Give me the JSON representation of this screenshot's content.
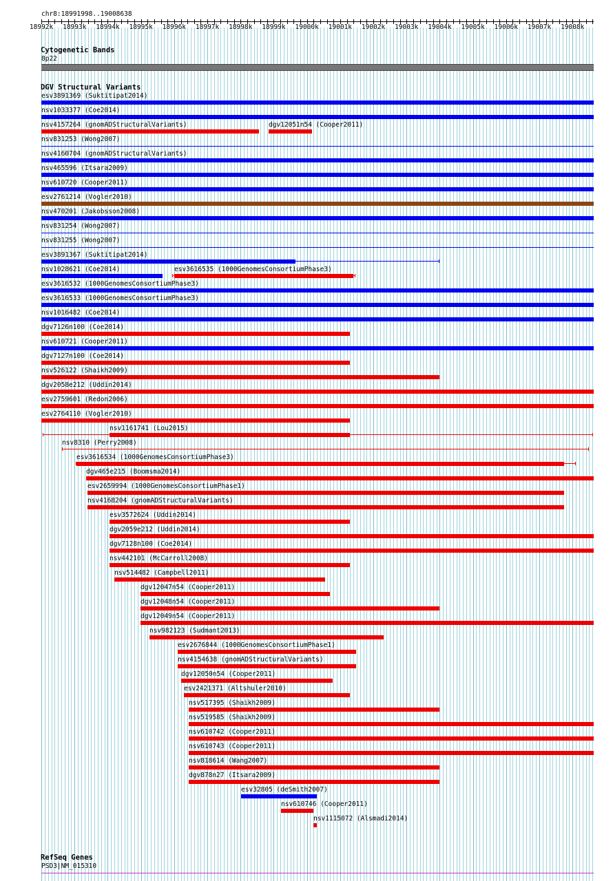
{
  "locus": "chr8:18991998..19008638",
  "colors": {
    "grid_line": "#9ed3dc",
    "grid_line_major": "#7fbcc8",
    "gain": "#0000ee",
    "loss": "#ee0000",
    "complex": "#8b4513",
    "band_gray": "#777777",
    "gene_line": "#cc33cc"
  },
  "ruler": {
    "start": 18991998,
    "end": 19008638,
    "ticks": [
      "18992k",
      "18993k",
      "18994k",
      "18995k",
      "18996k",
      "18997k",
      "18998k",
      "18999k",
      "19000k",
      "19001k",
      "19002k",
      "19003k",
      "19004k",
      "19005k",
      "19006k",
      "19007k",
      "19008k"
    ]
  },
  "cytoband": {
    "title": "Cytogenetic Bands",
    "band": "8p22"
  },
  "dgv": {
    "title": "DGV Structural Variants",
    "tracks": [
      {
        "label": "esv3891369 (Suktitipat2014)",
        "type": "gain",
        "start": 18991998,
        "end": 19008638,
        "style": "thick"
      },
      {
        "label": "nsv1033377 (Coe2014)",
        "type": "gain",
        "start": 18991998,
        "end": 19008638,
        "style": "thick"
      },
      {
        "label": "nsv4157264 (gnomADStructuralVariants)",
        "type": "loss",
        "start": 18991998,
        "end": 18998550,
        "style": "thick"
      },
      {
        "label": "dgv12051n54 (Cooper2011)",
        "type": "loss",
        "start": 18998850,
        "end": 19000150,
        "style": "thick",
        "same_row": true
      },
      {
        "label": "nsv831253 (Wong2007)",
        "type": "gain",
        "start": 18991998,
        "end": 19008638,
        "style": "thin"
      },
      {
        "label": "nsv4160704 (gnomADStructuralVariants)",
        "type": "gain",
        "start": 18991998,
        "end": 19008638,
        "style": "thick"
      },
      {
        "label": "nsv465596 (Itsara2009)",
        "type": "gain",
        "start": 18991998,
        "end": 19008638,
        "style": "thick"
      },
      {
        "label": "nsv610720 (Cooper2011)",
        "type": "gain",
        "start": 18991998,
        "end": 19008638,
        "style": "thick"
      },
      {
        "label": "esv2761214 (Vogler2010)",
        "type": "complex",
        "start": 18991998,
        "end": 19008638,
        "style": "thick"
      },
      {
        "label": "nsv470201 (Jakobsson2008)",
        "type": "gain",
        "start": 18991998,
        "end": 19008638,
        "style": "thick"
      },
      {
        "label": "nsv831254 (Wong2007)",
        "type": "gain",
        "start": 18991998,
        "end": 19008638,
        "style": "thin"
      },
      {
        "label": "nsv831255 (Wong2007)",
        "type": "gain",
        "start": 18991998,
        "end": 19008638,
        "style": "thin"
      },
      {
        "label": "esv3891367 (Suktitipat2014)",
        "type": "gain",
        "start": 18991998,
        "end": 18999650,
        "style": "whisker",
        "whisker_end": 19003990
      },
      {
        "label": "nsv1028621 (Coe2014)",
        "type": "gain",
        "start": 18991998,
        "end": 18995650,
        "style": "thick"
      },
      {
        "label": "esv3616535 (1000GenomesConsortiumPhase3)",
        "type": "loss",
        "start": 18996000,
        "end": 19001400,
        "style": "whisker",
        "whisker_start": 18995950,
        "whisker_end": 19001450,
        "same_row": true
      },
      {
        "label": "esv3616532 (1000GenomesConsortiumPhase3)",
        "type": "gain",
        "start": 18991998,
        "end": 19008638,
        "style": "thick"
      },
      {
        "label": "esv3616533 (1000GenomesConsortiumPhase3)",
        "type": "gain",
        "start": 18991998,
        "end": 19008638,
        "style": "thick"
      },
      {
        "label": "nsv1016482 (Coe2014)",
        "type": "gain",
        "start": 18991998,
        "end": 19008638,
        "style": "thick"
      },
      {
        "label": "dgv7126n100 (Coe2014)",
        "type": "loss",
        "start": 18991998,
        "end": 19001300,
        "style": "thick"
      },
      {
        "label": "nsv610721 (Cooper2011)",
        "type": "gain",
        "start": 18991998,
        "end": 19008638,
        "style": "thick"
      },
      {
        "label": "dgv7127n100 (Coe2014)",
        "type": "loss",
        "start": 18991998,
        "end": 19001300,
        "style": "thick"
      },
      {
        "label": "nsv526122 (Shaikh2009)",
        "type": "loss",
        "start": 18991998,
        "end": 19003990,
        "style": "thick"
      },
      {
        "label": "dgv2058e212 (Uddin2014)",
        "type": "loss",
        "start": 18991998,
        "end": 19008638,
        "style": "thick"
      },
      {
        "label": "esv2759601 (Redon2006)",
        "type": "loss",
        "start": 18991998,
        "end": 19008638,
        "style": "thick"
      },
      {
        "label": "esv2764110 (Vogler2010)",
        "type": "loss",
        "start": 18991998,
        "end": 19001300,
        "style": "thick"
      },
      {
        "label": "nsv1161741 (Lou2015)",
        "type": "loss",
        "start": 18994050,
        "end": 19001300,
        "style": "whisker",
        "whisker_start": 18992030,
        "whisker_end": 19008620
      },
      {
        "label": "nsv8310 (Perry2008)",
        "type": "loss",
        "start": 18992620,
        "end": 19008500,
        "style": "thin-capped"
      },
      {
        "label": "esv3616534 (1000GenomesConsortiumPhase3)",
        "type": "loss",
        "start": 18993050,
        "end": 19007750,
        "style": "whisker",
        "whisker_start": 18993040,
        "whisker_end": 19008100
      },
      {
        "label": "dgv465e215 (Boomsma2014)",
        "type": "loss",
        "start": 18993350,
        "end": 19008638,
        "style": "thick"
      },
      {
        "label": "esv2659994 (1000GenomesConsortiumPhase1)",
        "type": "loss",
        "start": 18993390,
        "end": 19007750,
        "style": "thick"
      },
      {
        "label": "nsv4168204 (gnomADStructuralVariants)",
        "type": "loss",
        "start": 18993390,
        "end": 19007750,
        "style": "thick"
      },
      {
        "label": "esv3572624 (Uddin2014)",
        "type": "loss",
        "start": 18994050,
        "end": 19001300,
        "style": "thick"
      },
      {
        "label": "dgv2059e212 (Uddin2014)",
        "type": "loss",
        "start": 18994050,
        "end": 19008638,
        "style": "thick"
      },
      {
        "label": "dgv7128n100 (Coe2014)",
        "type": "loss",
        "start": 18994050,
        "end": 19008638,
        "style": "thick"
      },
      {
        "label": "nsv442101 (McCarroll2008)",
        "type": "loss",
        "start": 18994050,
        "end": 19001300,
        "style": "thick"
      },
      {
        "label": "nsv514482 (Campbell2011)",
        "type": "loss",
        "start": 18994200,
        "end": 19000550,
        "style": "thick"
      },
      {
        "label": "dgv12047n54 (Cooper2011)",
        "type": "loss",
        "start": 18994990,
        "end": 19000700,
        "style": "thick"
      },
      {
        "label": "dgv12048n54 (Cooper2011)",
        "type": "loss",
        "start": 18994990,
        "end": 19003990,
        "style": "thick"
      },
      {
        "label": "dgv12049n54 (Cooper2011)",
        "type": "loss",
        "start": 18994990,
        "end": 19008638,
        "style": "thick"
      },
      {
        "label": "nsv982123 (Sudmant2013)",
        "type": "loss",
        "start": 18995250,
        "end": 19002300,
        "style": "thick"
      },
      {
        "label": "esv2676844 (1000GenomesConsortiumPhase1)",
        "type": "loss",
        "start": 18996100,
        "end": 19001480,
        "style": "thick"
      },
      {
        "label": "nsv4154638 (gnomADStructuralVariants)",
        "type": "loss",
        "start": 18996100,
        "end": 19001480,
        "style": "thick"
      },
      {
        "label": "dgv12050n54 (Cooper2011)",
        "type": "loss",
        "start": 18996200,
        "end": 19000770,
        "style": "thick"
      },
      {
        "label": "esv2421371 (Altshuler2010)",
        "type": "loss",
        "start": 18996300,
        "end": 19001300,
        "style": "thick"
      },
      {
        "label": "nsv517395 (Shaikh2009)",
        "type": "loss",
        "start": 18996440,
        "end": 19003990,
        "style": "thick"
      },
      {
        "label": "nsv519585 (Shaikh2009)",
        "type": "loss",
        "start": 18996440,
        "end": 19008638,
        "style": "thick"
      },
      {
        "label": "nsv610742 (Cooper2011)",
        "type": "loss",
        "start": 18996440,
        "end": 19008638,
        "style": "thick"
      },
      {
        "label": "nsv610743 (Cooper2011)",
        "type": "loss",
        "start": 18996440,
        "end": 19008638,
        "style": "thick"
      },
      {
        "label": "nsv818614 (Wang2007)",
        "type": "loss",
        "start": 18996440,
        "end": 19003990,
        "style": "thick"
      },
      {
        "label": "dgv878n27 (Itsara2009)",
        "type": "loss",
        "start": 18996440,
        "end": 19003990,
        "style": "thick"
      },
      {
        "label": "esv32805 (deSmith2007)",
        "type": "gain",
        "start": 18998020,
        "end": 19000300,
        "style": "thick"
      },
      {
        "label": "nsv610746 (Cooper2011)",
        "type": "loss",
        "start": 18999210,
        "end": 19000200,
        "style": "thick"
      },
      {
        "label": "nsv1115072 (Alsmadi2014)",
        "type": "loss",
        "start": 19000200,
        "end": 19000290,
        "style": "tiny"
      }
    ]
  },
  "refseq": {
    "title": "RefSeq Genes",
    "gene": "PSD3|NM_015310"
  }
}
